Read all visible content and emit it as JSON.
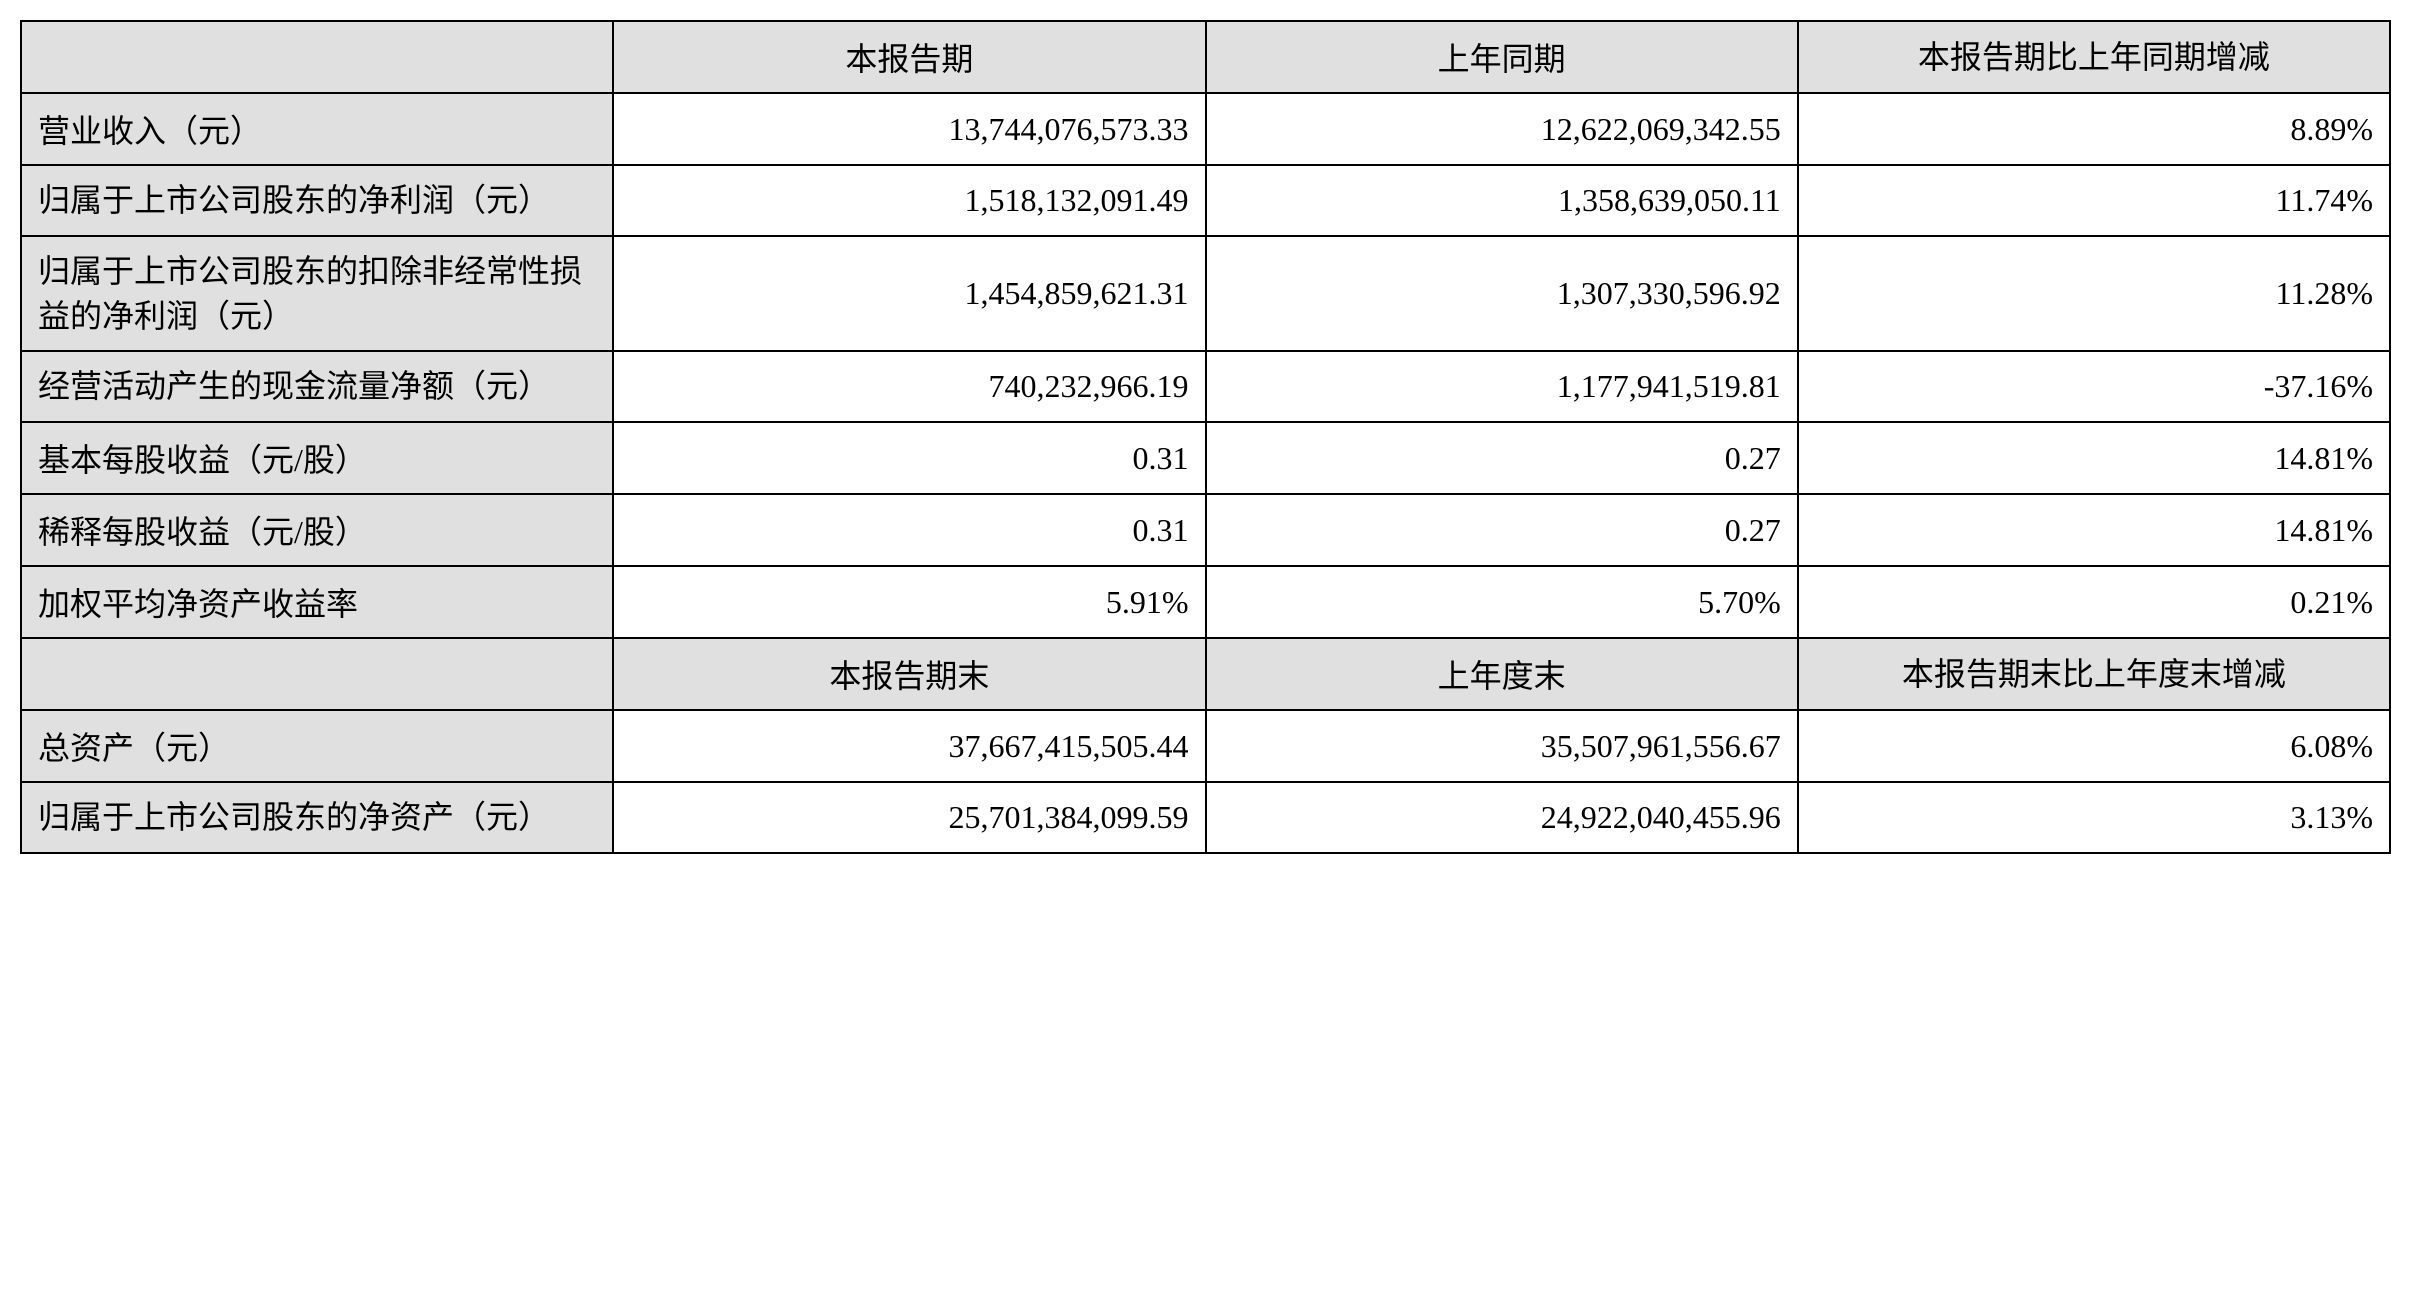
{
  "table": {
    "type": "table",
    "background_color": "#ffffff",
    "header_background_color": "#e0e0e0",
    "label_background_color": "#e0e0e0",
    "border_color": "#000000",
    "text_color": "#000000",
    "font_size": 32,
    "columns": {
      "label_width_pct": 25,
      "data_width_pct": 25
    },
    "header1": {
      "empty": "",
      "col1": "本报告期",
      "col2": "上年同期",
      "col3": "本报告期比上年同期增减"
    },
    "rows1": [
      {
        "label": "营业收入（元）",
        "col1": "13,744,076,573.33",
        "col2": "12,622,069,342.55",
        "col3": "8.89%"
      },
      {
        "label": "归属于上市公司股东的净利润（元）",
        "col1": "1,518,132,091.49",
        "col2": "1,358,639,050.11",
        "col3": "11.74%"
      },
      {
        "label": "归属于上市公司股东的扣除非经常性损益的净利润（元）",
        "col1": "1,454,859,621.31",
        "col2": "1,307,330,596.92",
        "col3": "11.28%"
      },
      {
        "label": "经营活动产生的现金流量净额（元）",
        "col1": "740,232,966.19",
        "col2": "1,177,941,519.81",
        "col3": "-37.16%"
      },
      {
        "label": "基本每股收益（元/股）",
        "col1": "0.31",
        "col2": "0.27",
        "col3": "14.81%"
      },
      {
        "label": "稀释每股收益（元/股）",
        "col1": "0.31",
        "col2": "0.27",
        "col3": "14.81%"
      },
      {
        "label": "加权平均净资产收益率",
        "col1": "5.91%",
        "col2": "5.70%",
        "col3": "0.21%"
      }
    ],
    "header2": {
      "empty": "",
      "col1": "本报告期末",
      "col2": "上年度末",
      "col3": "本报告期末比上年度末增减"
    },
    "rows2": [
      {
        "label": "总资产（元）",
        "col1": "37,667,415,505.44",
        "col2": "35,507,961,556.67",
        "col3": "6.08%"
      },
      {
        "label": "归属于上市公司股东的净资产（元）",
        "col1": "25,701,384,099.59",
        "col2": "24,922,040,455.96",
        "col3": "3.13%"
      }
    ]
  }
}
